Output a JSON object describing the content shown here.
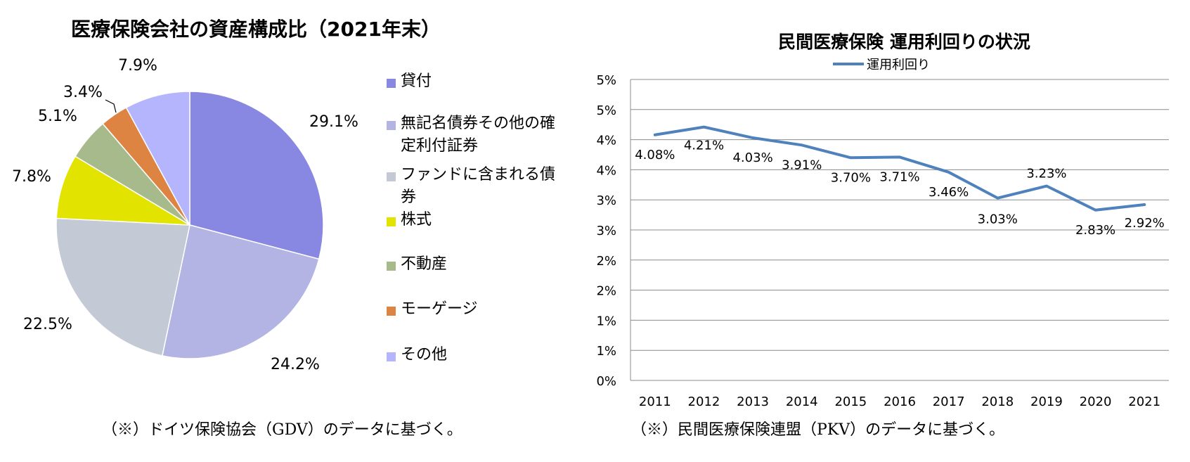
{
  "pie_chart_title": "医療保険会社の資産構成比（2021年末）",
  "line_chart_title": "民間医療保険 運用利回りの状況",
  "left_note": "（※）ドイツ保険協会（GDV）のデータに基づく。",
  "right_note": "（※）民間医療保険連盟（PKV）のデータに基づく。",
  "chart_data": [
    {
      "type": "pie",
      "title": "医療保険会社の資産構成比（2021年末）",
      "categories": [
        "貸付",
        "無記名債券その他の確定利付証券",
        "ファンドに含まれる債券",
        "株式",
        "不動産",
        "モーゲージ",
        "その他"
      ],
      "values": [
        29.1,
        24.2,
        22.5,
        7.8,
        5.1,
        3.4,
        7.9
      ],
      "labels": [
        "29.1%",
        "24.2%",
        "22.5%",
        "7.8%",
        "5.1%",
        "3.4%",
        "7.9%"
      ],
      "colors": [
        "#8888e3",
        "#b3b3e4",
        "#c4cad5",
        "#e3e300",
        "#a6ba8c",
        "#dd8443",
        "#b5b5fd"
      ],
      "legend_position": "right"
    },
    {
      "type": "line",
      "title": "民間医療保険 運用利回りの状況",
      "series": [
        {
          "name": "運用利回り",
          "color": "#4f81bd",
          "values": [
            4.08,
            4.21,
            4.03,
            3.91,
            3.7,
            3.71,
            3.46,
            3.03,
            3.23,
            2.83,
            2.92
          ],
          "labels": [
            "4.08%",
            "4.21%",
            "4.03%",
            "3.91%",
            "3.70%",
            "3.71%",
            "3.46%",
            "3.03%",
            "3.23%",
            "2.83%",
            "2.92%"
          ]
        }
      ],
      "x": [
        "2011",
        "2012",
        "2013",
        "2014",
        "2015",
        "2016",
        "2017",
        "2018",
        "2019",
        "2020",
        "2021"
      ],
      "ylim": [
        0,
        5
      ],
      "yticks": [
        0,
        0.5,
        1,
        1.5,
        2,
        2.5,
        3,
        3.5,
        4,
        4.5,
        5
      ],
      "ytick_labels": [
        "0%",
        "1%",
        "1%",
        "2%",
        "2%",
        "3%",
        "3%",
        "4%",
        "4%",
        "5%",
        "5%"
      ],
      "grid": true,
      "legend_position": "top"
    }
  ]
}
